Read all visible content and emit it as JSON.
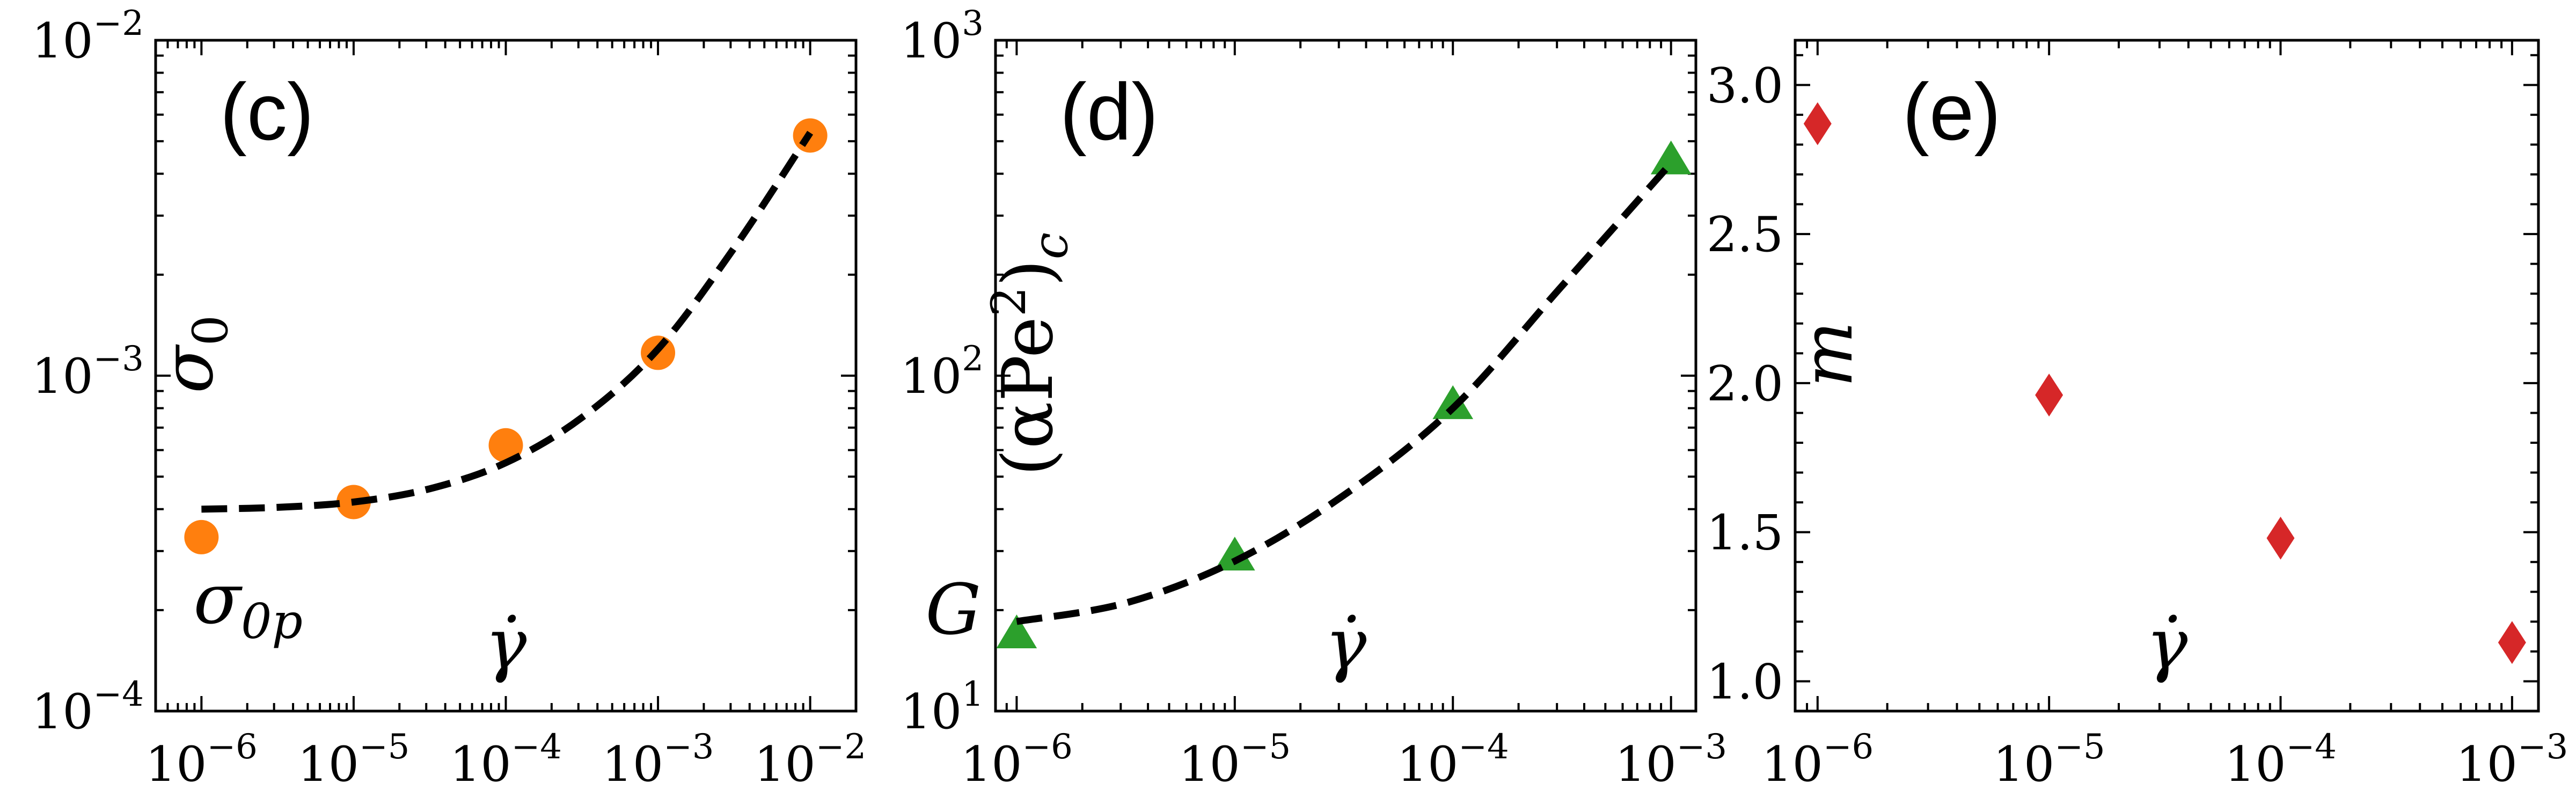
{
  "chart_data": [
    {
      "type": "scatter",
      "panel_label": "(c)",
      "xscale": "log",
      "yscale": "log",
      "xlim": [
        5e-07,
        0.02
      ],
      "ylim": [
        0.0001,
        0.01
      ],
      "xticks": [
        {
          "value": 1e-06,
          "label_base": "10",
          "label_exp": "−6"
        },
        {
          "value": 1e-05,
          "label_base": "10",
          "label_exp": "−5"
        },
        {
          "value": 0.0001,
          "label_base": "10",
          "label_exp": "−4"
        },
        {
          "value": 0.001,
          "label_base": "10",
          "label_exp": "−3"
        },
        {
          "value": 0.01,
          "label_base": "10",
          "label_exp": "−2"
        }
      ],
      "yticks": [
        {
          "value": 0.0001,
          "label_base": "10",
          "label_exp": "−4"
        },
        {
          "value": 0.001,
          "label_base": "10",
          "label_exp": "−3"
        },
        {
          "value": 0.01,
          "label_base": "10",
          "label_exp": "−2"
        }
      ],
      "xlabel": "γ̇",
      "ylabel": {
        "main": "σ",
        "sub": "0"
      },
      "annotation": {
        "text": "σ",
        "sub": "0p",
        "x": 1e-06,
        "y": 0.00026
      },
      "series": [
        {
          "name": "data",
          "marker": "circle",
          "color": "#ff7f0e",
          "x": [
            1e-06,
            1e-05,
            0.0001,
            0.001,
            0.01
          ],
          "y": [
            0.00033,
            0.00042,
            0.00062,
            0.00117,
            0.0052
          ]
        },
        {
          "name": "fit",
          "style": "dashed",
          "color": "#000000",
          "x": [
            1e-06,
            3.16e-06,
            1e-05,
            3.16e-05,
            0.0001,
            0.000316,
            0.001,
            0.00316,
            0.01
          ],
          "y": [
            0.0004,
            0.000405,
            0.00042,
            0.00046,
            0.00055,
            0.00075,
            0.0012,
            0.0024,
            0.0053
          ]
        }
      ]
    },
    {
      "type": "scatter",
      "panel_label": "(d)",
      "xscale": "log",
      "yscale": "log",
      "xlim": [
        8e-07,
        0.0013
      ],
      "ylim": [
        10,
        1000
      ],
      "xticks": [
        {
          "value": 1e-06,
          "label_base": "10",
          "label_exp": "−6"
        },
        {
          "value": 1e-05,
          "label_base": "10",
          "label_exp": "−5"
        },
        {
          "value": 0.0001,
          "label_base": "10",
          "label_exp": "−4"
        },
        {
          "value": 0.001,
          "label_base": "10",
          "label_exp": "−3"
        }
      ],
      "yticks": [
        {
          "value": 10,
          "label_base": "10",
          "label_exp": "1"
        },
        {
          "value": 100,
          "label_base": "10",
          "label_exp": "2"
        },
        {
          "value": 1000,
          "label_base": "10",
          "label_exp": "3"
        }
      ],
      "xlabel": "γ̇",
      "ylabel": {
        "text": "(αPe",
        "sup": "2",
        "tail": ")",
        "sub": "c"
      },
      "annotation": {
        "text": "G",
        "x": 1e-06,
        "y": 19
      },
      "series": [
        {
          "name": "data",
          "marker": "triangle",
          "color": "#2ca02c",
          "x": [
            1e-06,
            1e-05,
            0.0001,
            0.001
          ],
          "y": [
            17,
            29,
            82,
            440
          ]
        },
        {
          "name": "fit",
          "style": "dashed",
          "color": "#000000",
          "x": [
            1e-06,
            3.16e-06,
            1e-05,
            3.16e-05,
            0.0001,
            0.000316,
            0.001
          ],
          "y": [
            18.5,
            21,
            28,
            44,
            80,
            185,
            430
          ]
        }
      ]
    },
    {
      "type": "scatter",
      "panel_label": "(e)",
      "xscale": "log",
      "yscale": "linear",
      "xlim": [
        8e-07,
        0.0013
      ],
      "ylim": [
        0.9,
        3.15
      ],
      "xticks": [
        {
          "value": 1e-06,
          "label_base": "10",
          "label_exp": "−6"
        },
        {
          "value": 1e-05,
          "label_base": "10",
          "label_exp": "−5"
        },
        {
          "value": 0.0001,
          "label_base": "10",
          "label_exp": "−4"
        },
        {
          "value": 0.001,
          "label_base": "10",
          "label_exp": "−3"
        }
      ],
      "yticks": [
        {
          "value": 1.0,
          "label": "1.0"
        },
        {
          "value": 1.5,
          "label": "1.5"
        },
        {
          "value": 2.0,
          "label": "2.0"
        },
        {
          "value": 2.5,
          "label": "2.5"
        },
        {
          "value": 3.0,
          "label": "3.0"
        }
      ],
      "xlabel": "γ̇",
      "ylabel": {
        "text": "m"
      },
      "series": [
        {
          "name": "data",
          "marker": "diamond",
          "color": "#d62728",
          "x": [
            1e-06,
            1e-05,
            0.0001,
            0.001
          ],
          "y": [
            2.87,
            1.96,
            1.48,
            1.13
          ]
        }
      ]
    }
  ]
}
